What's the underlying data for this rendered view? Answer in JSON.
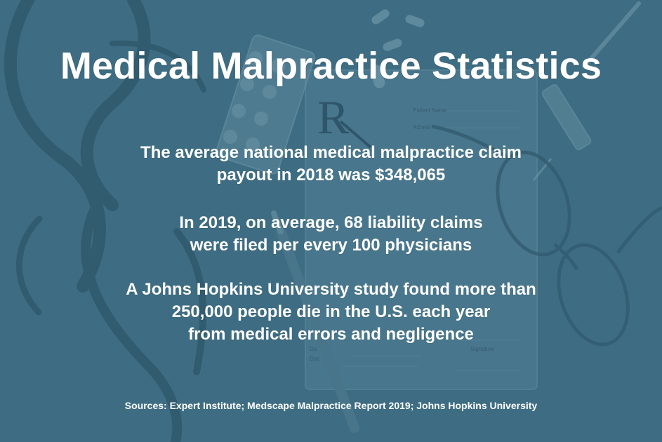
{
  "poster": {
    "background_color": "#3f6d84",
    "image_tint": "#6f95a6",
    "title": "Medical Malpractice Statistics",
    "stats": [
      {
        "line1": "The average national medical malpractice claim",
        "line2": "payout in 2018 was $348,065"
      },
      {
        "line1": "In 2019, on average, 68 liability claims",
        "line2": "were filed per every 100 physicians"
      },
      {
        "line1": "A Johns Hopkins University study found more than",
        "line2": "250,000 people die in the U.S. each year",
        "line3": "from medical errors and negligence"
      }
    ],
    "sources": "Sources: Expert Institute; Medscape Malpractice Report 2019; Johns Hopkins University"
  },
  "background_image": {
    "icons": [
      "stethoscope-icon",
      "pill-blister-pack-icon",
      "pill-icon",
      "syringe-icon",
      "eyeglasses-icon",
      "prescription-form-icon",
      "pen-icon"
    ],
    "prescription_symbol": "R",
    "form_labels": {
      "patient_name": "Patient Name",
      "address": "Adress",
      "signature": "Signature",
      "date_short": "Da",
      "doctor_short": "Doc"
    }
  }
}
